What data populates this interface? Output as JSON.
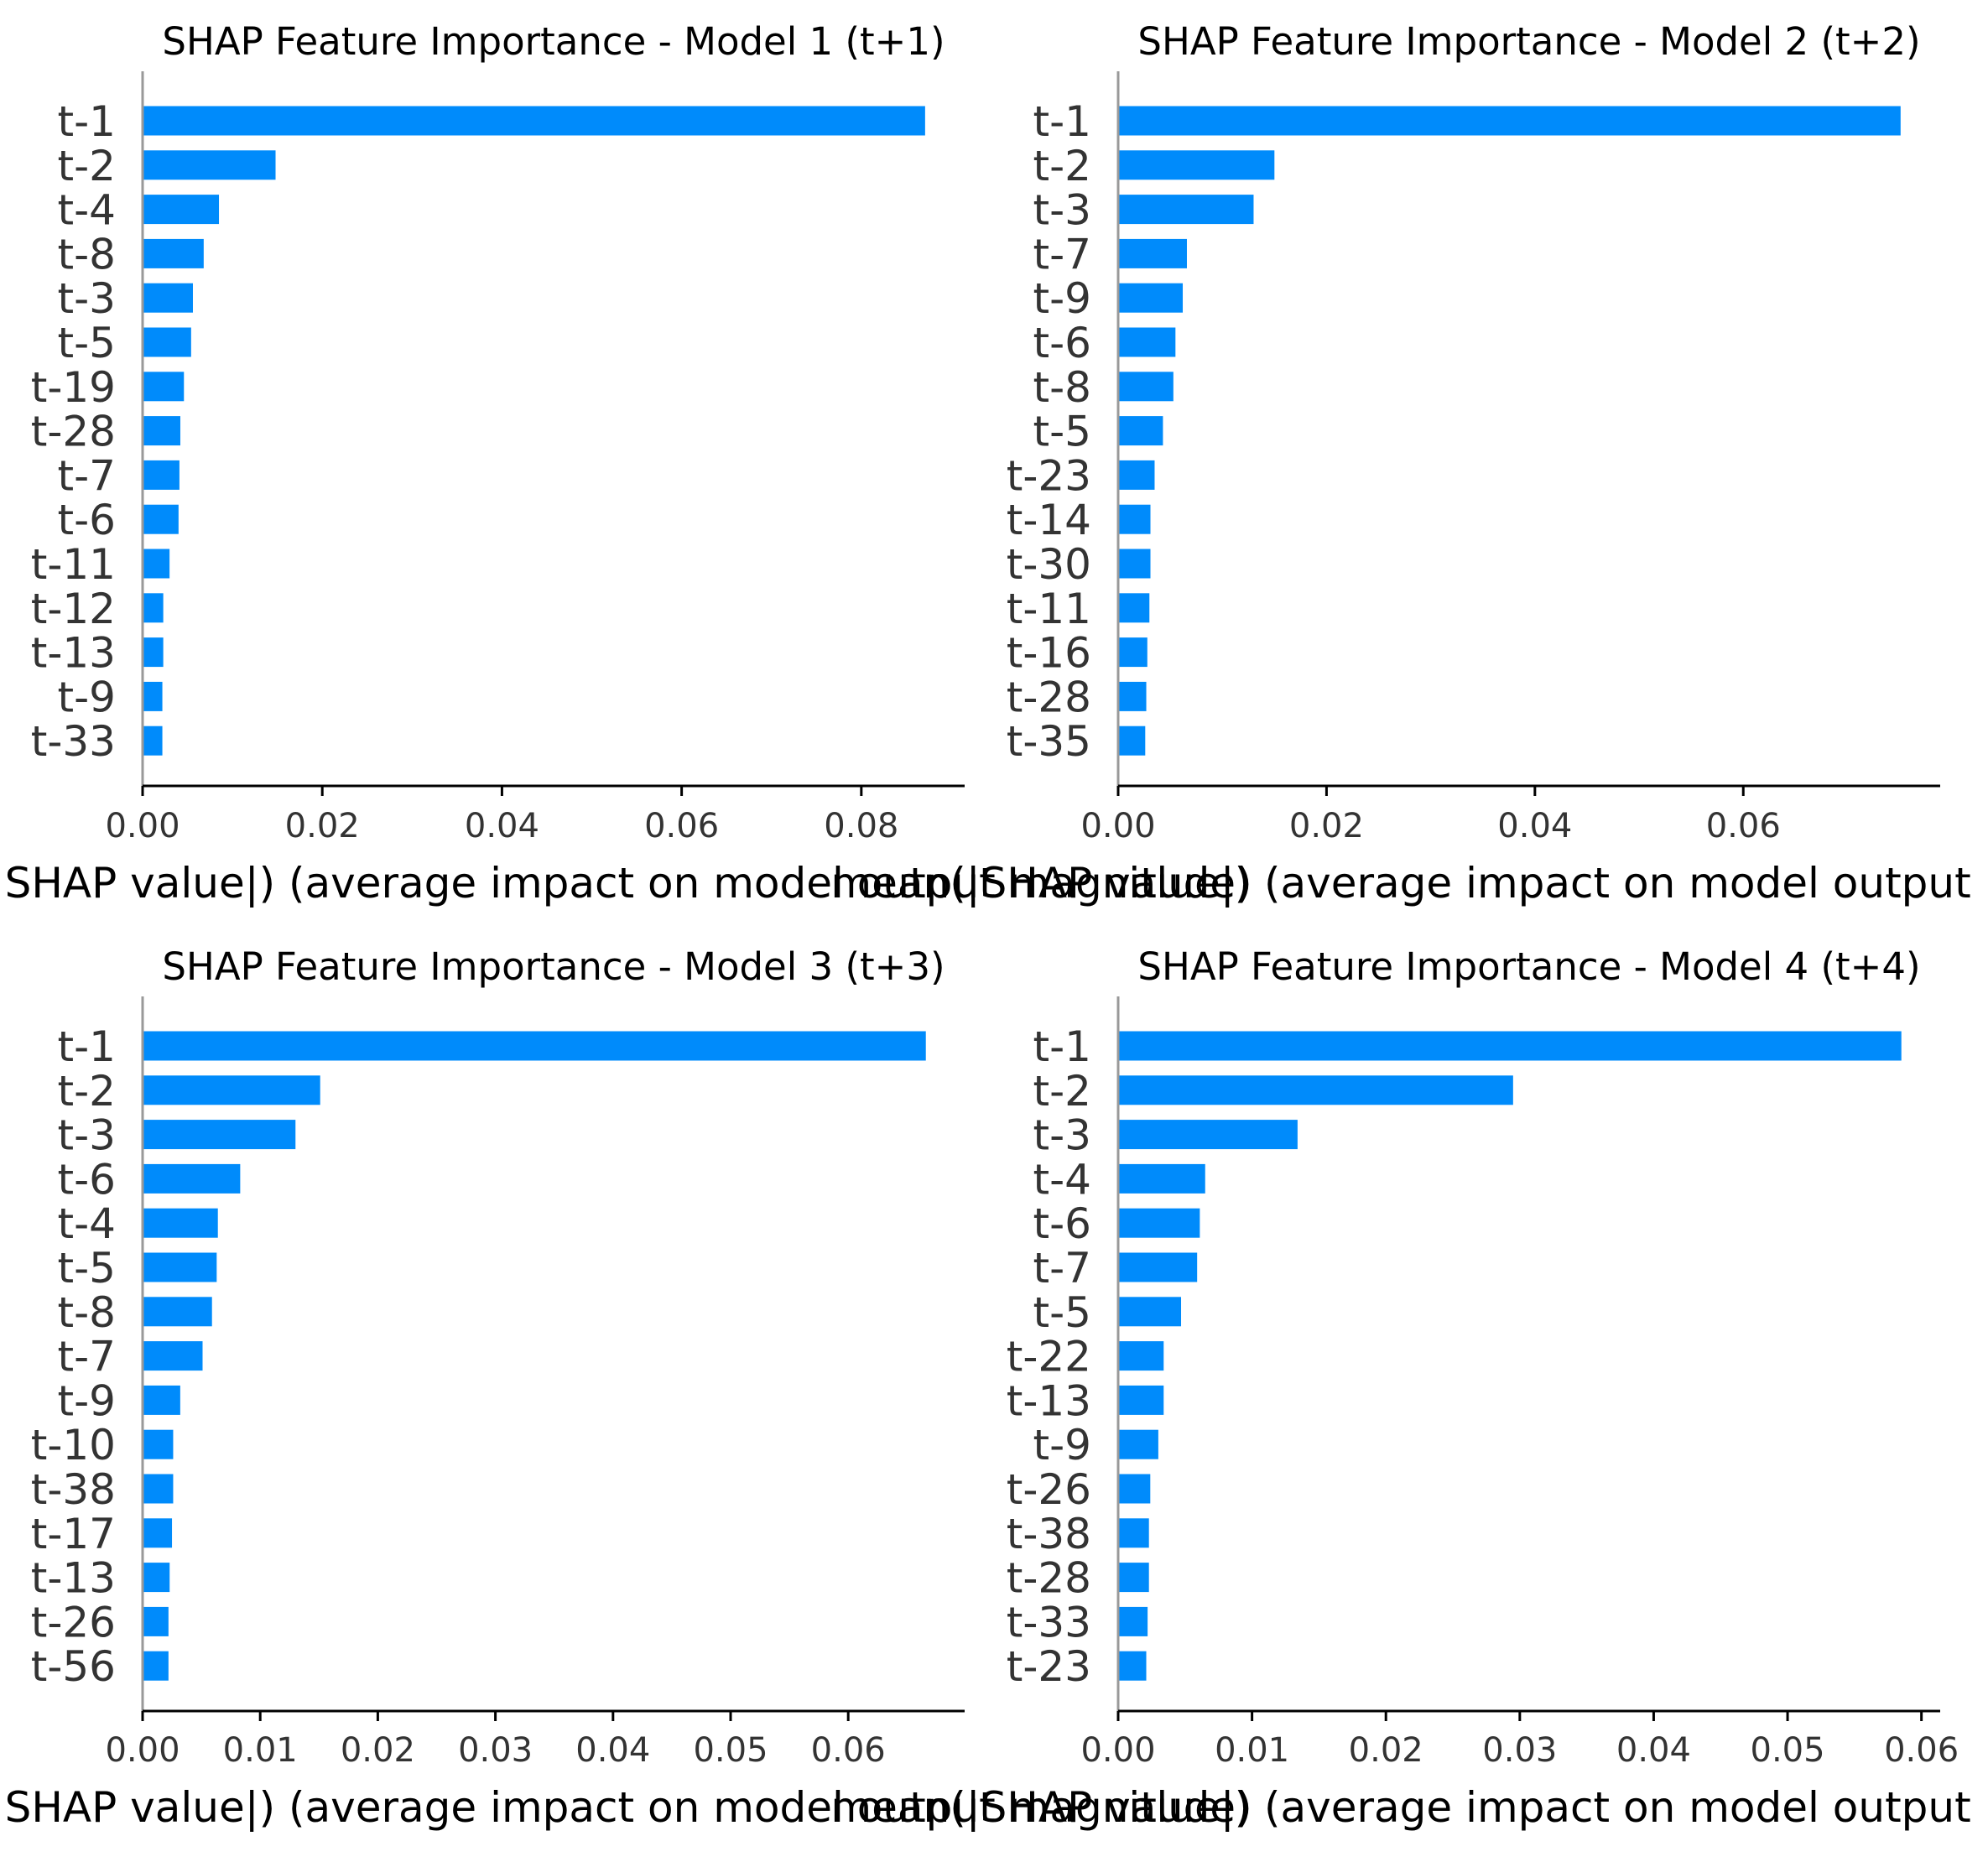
{
  "chart_data": [
    {
      "type": "bar",
      "orientation": "horizontal",
      "title": "SHAP Feature Importance - Model 1 (t+1)",
      "xlabel": "mean(|SHAP value|) (average impact on model output magnitude)",
      "categories": [
        "t-1",
        "t-2",
        "t-4",
        "t-8",
        "t-3",
        "t-5",
        "t-19",
        "t-28",
        "t-7",
        "t-6",
        "t-11",
        "t-12",
        "t-13",
        "t-9",
        "t-33"
      ],
      "values": [
        0.0871,
        0.0148,
        0.0085,
        0.0068,
        0.0056,
        0.0054,
        0.0046,
        0.0042,
        0.0041,
        0.004,
        0.003,
        0.0023,
        0.0023,
        0.0022,
        0.0022
      ],
      "xlim": [
        0,
        0.0915
      ],
      "xticks": [
        "0.00",
        "0.02",
        "0.04",
        "0.06",
        "0.08"
      ],
      "tick_values": [
        0,
        0.02,
        0.04,
        0.06,
        0.08
      ],
      "color": "#008bfb"
    },
    {
      "type": "bar",
      "orientation": "horizontal",
      "title": "SHAP Feature Importance - Model 2 (t+2)",
      "xlabel": "mean(|SHAP value|) (average impact on model output magnitude)",
      "categories": [
        "t-1",
        "t-2",
        "t-3",
        "t-7",
        "t-9",
        "t-6",
        "t-8",
        "t-5",
        "t-23",
        "t-14",
        "t-30",
        "t-11",
        "t-16",
        "t-28",
        "t-35"
      ],
      "values": [
        0.0751,
        0.015,
        0.013,
        0.0066,
        0.0062,
        0.0055,
        0.0053,
        0.0043,
        0.0035,
        0.0031,
        0.0031,
        0.003,
        0.0028,
        0.0027,
        0.0026
      ],
      "xlim": [
        0,
        0.0789
      ],
      "xticks": [
        "0.00",
        "0.02",
        "0.04",
        "0.06"
      ],
      "tick_values": [
        0,
        0.02,
        0.04,
        0.06
      ],
      "color": "#008bfb"
    },
    {
      "type": "bar",
      "orientation": "horizontal",
      "title": "SHAP Feature Importance - Model 3 (t+3)",
      "xlabel": "mean(|SHAP value|) (average impact on model output magnitude)",
      "categories": [
        "t-1",
        "t-2",
        "t-3",
        "t-6",
        "t-4",
        "t-5",
        "t-8",
        "t-7",
        "t-9",
        "t-10",
        "t-38",
        "t-17",
        "t-13",
        "t-26",
        "t-56"
      ],
      "values": [
        0.0666,
        0.0151,
        0.013,
        0.0083,
        0.0064,
        0.0063,
        0.0059,
        0.0051,
        0.0032,
        0.0026,
        0.0026,
        0.0025,
        0.0023,
        0.0022,
        0.0022
      ],
      "xlim": [
        0,
        0.0699
      ],
      "xticks": [
        "0.00",
        "0.01",
        "0.02",
        "0.03",
        "0.04",
        "0.05",
        "0.06"
      ],
      "tick_values": [
        0,
        0.01,
        0.02,
        0.03,
        0.04,
        0.05,
        0.06
      ],
      "color": "#008bfb"
    },
    {
      "type": "bar",
      "orientation": "horizontal",
      "title": "SHAP Feature Importance - Model 4 (t+4)",
      "xlabel": "mean(|SHAP value|) (average impact on model output magnitude)",
      "categories": [
        "t-1",
        "t-2",
        "t-3",
        "t-4",
        "t-6",
        "t-7",
        "t-5",
        "t-22",
        "t-13",
        "t-9",
        "t-26",
        "t-38",
        "t-28",
        "t-33",
        "t-23"
      ],
      "values": [
        0.0585,
        0.0295,
        0.0134,
        0.0065,
        0.0061,
        0.0059,
        0.0047,
        0.0034,
        0.0034,
        0.003,
        0.0024,
        0.0023,
        0.0023,
        0.0022,
        0.0021
      ],
      "xlim": [
        0,
        0.0614
      ],
      "xticks": [
        "0.00",
        "0.01",
        "0.02",
        "0.03",
        "0.04",
        "0.05",
        "0.06"
      ],
      "tick_values": [
        0,
        0.01,
        0.02,
        0.03,
        0.04,
        0.05,
        0.06
      ],
      "color": "#008bfb"
    }
  ]
}
